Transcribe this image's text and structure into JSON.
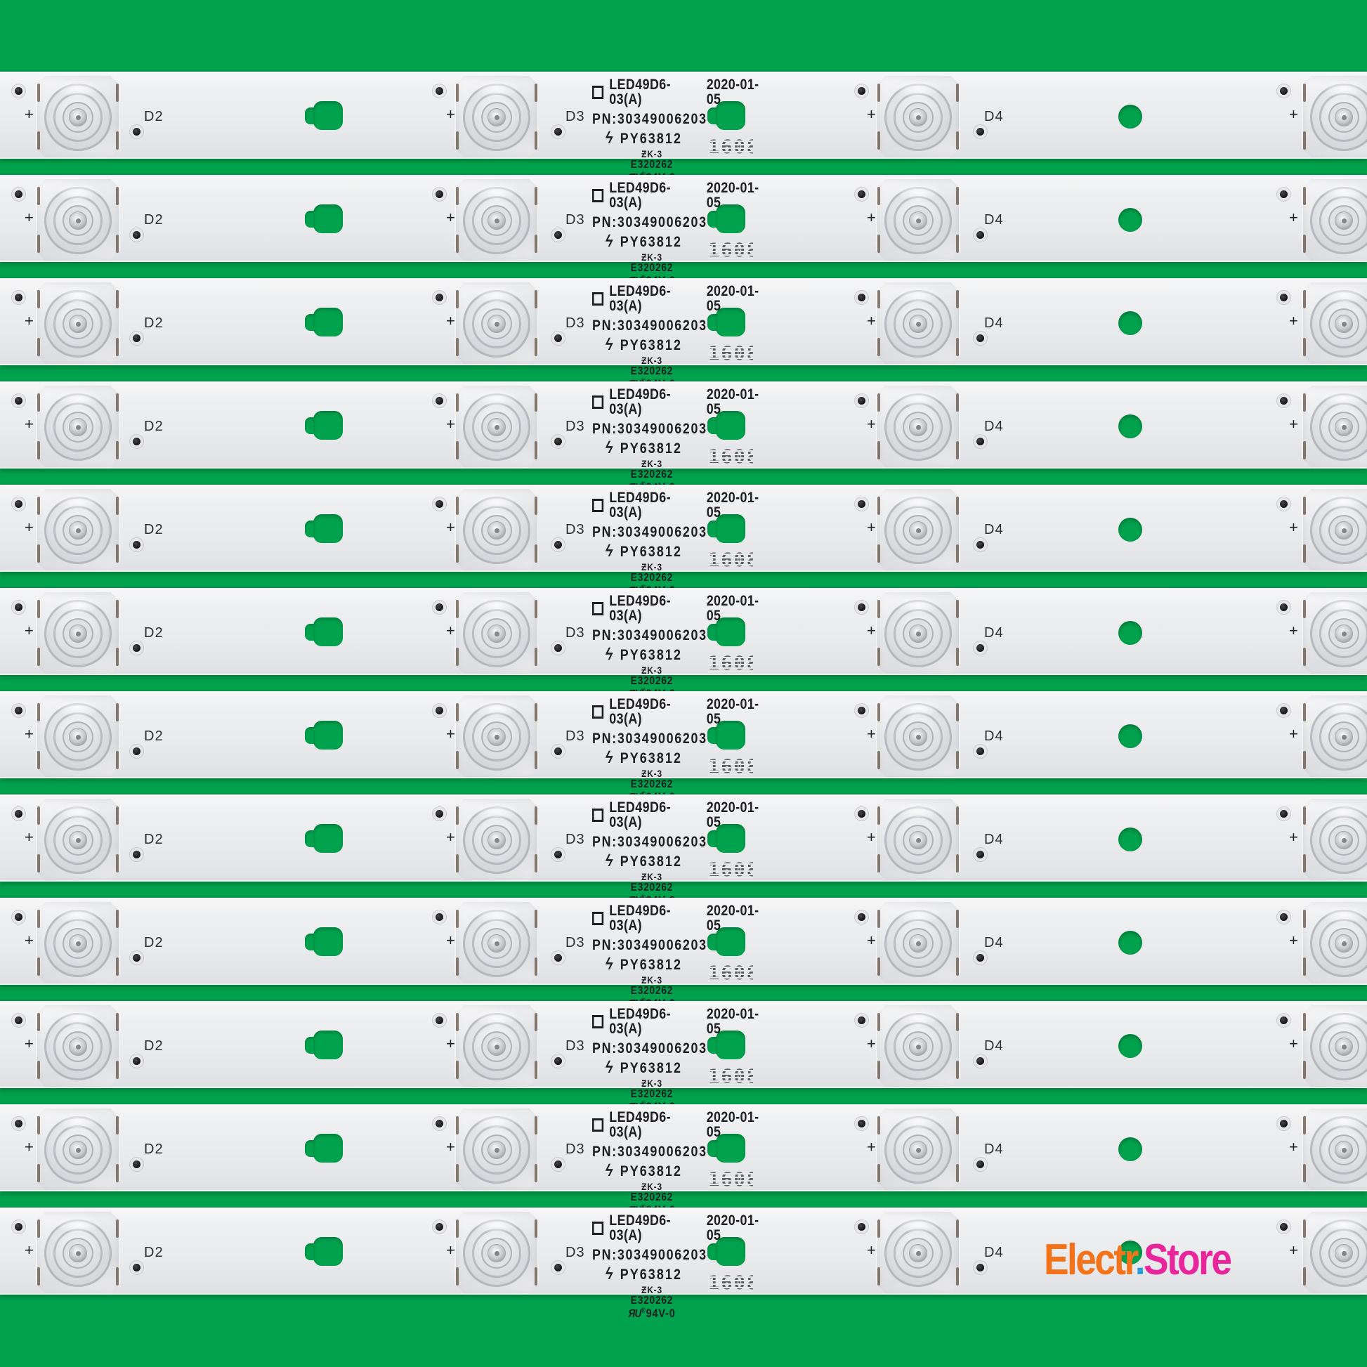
{
  "colors": {
    "background_green": "#01a24d",
    "logo_orange": "#f3731b",
    "logo_blue": "#2d9fd8",
    "logo_magenta": "#e8259b"
  },
  "strips": {
    "count": 12,
    "plus_label": "+",
    "led_labels": [
      "D2",
      "D3",
      "D4"
    ],
    "print": {
      "model": "LED49D6-03(A)",
      "date": "2020-01-05",
      "pn": "PN:30349006203",
      "flash_icon": "ϟ",
      "py": "PY63812",
      "zk": "ƵK-3",
      "e_number": "E320262",
      "ul_mark": "ЯU",
      "reg_mark": "®",
      "rating": "94V-0",
      "date_code": "1608"
    }
  },
  "logo": {
    "part1": "Electr",
    "dot": ".",
    "part2": "Store"
  }
}
